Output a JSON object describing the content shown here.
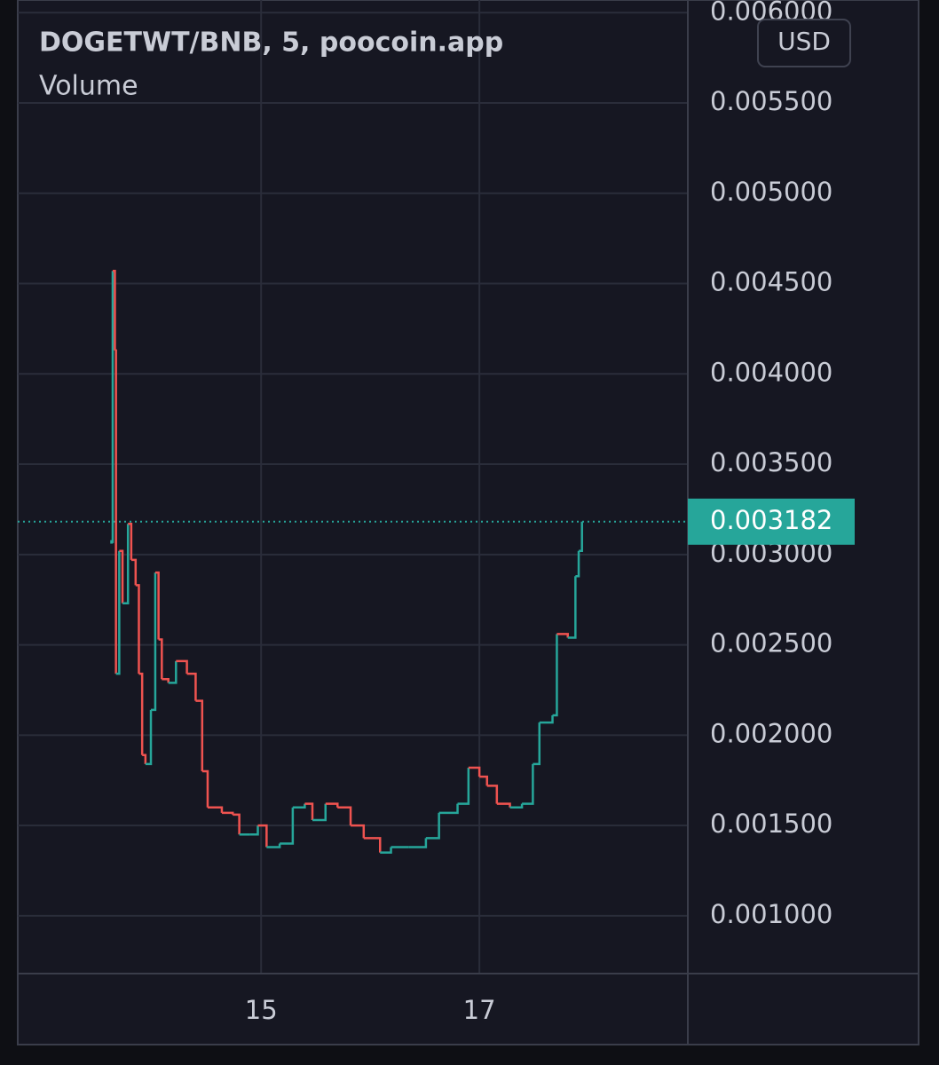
{
  "header": {
    "title": "DOGETWT/BNB, 5, poocoin.app",
    "subtitle": "Volume",
    "currency_button": "USD"
  },
  "chart_data": {
    "type": "line",
    "x": [
      13.63,
      13.64,
      13.66,
      13.67,
      13.7,
      13.73,
      13.78,
      13.81,
      13.85,
      13.88,
      13.91,
      13.94,
      13.99,
      14.03,
      14.06,
      14.09,
      14.15,
      14.22,
      14.32,
      14.4,
      14.46,
      14.51,
      14.64,
      14.74,
      14.8,
      14.9,
      14.97,
      15.05,
      15.17,
      15.29,
      15.4,
      15.47,
      15.59,
      15.7,
      15.82,
      15.94,
      16.09,
      16.19,
      16.35,
      16.51,
      16.63,
      16.8,
      16.9,
      17.0,
      17.07,
      17.16,
      17.28,
      17.39,
      17.49,
      17.55,
      17.67,
      17.71,
      17.81,
      17.88,
      17.91,
      17.94
    ],
    "series": [
      {
        "values": [
          0.00307,
          0.00457,
          0.00413,
          0.00234,
          0.00302,
          0.00273,
          0.00317,
          0.00297,
          0.00283,
          0.00234,
          0.00189,
          0.00184,
          0.00214,
          0.0029,
          0.00253,
          0.00231,
          0.00229,
          0.00241,
          0.00234,
          0.00219,
          0.0018,
          0.0016,
          0.00157,
          0.00156,
          0.00145,
          0.00145,
          0.0015,
          0.00138,
          0.0014,
          0.0016,
          0.00162,
          0.00153,
          0.00162,
          0.0016,
          0.0015,
          0.00143,
          0.00135,
          0.00138,
          0.00138,
          0.00143,
          0.00157,
          0.00162,
          0.00182,
          0.00177,
          0.00172,
          0.00162,
          0.0016,
          0.00162,
          0.00184,
          0.00207,
          0.00211,
          0.00256,
          0.00254,
          0.00288,
          0.00302,
          0.003182
        ]
      }
    ],
    "up_color": "#26a69a",
    "down_color": "#ef5350",
    "last_price": 0.003182,
    "xlim": [
      12.77,
      18.91
    ],
    "xticks": [
      15,
      17
    ],
    "ylim": [
      0.00068,
      0.00607
    ],
    "yticks": [
      {
        "value": 0.001,
        "label": "0.001000"
      },
      {
        "value": 0.0015,
        "label": "0.001500"
      },
      {
        "value": 0.002,
        "label": "0.002000"
      },
      {
        "value": 0.0025,
        "label": "0.002500"
      },
      {
        "value": 0.003,
        "label": "0.003000"
      },
      {
        "value": 0.0035,
        "label": "0.003500"
      },
      {
        "value": 0.004,
        "label": "0.004000"
      },
      {
        "value": 0.0045,
        "label": "0.004500"
      },
      {
        "value": 0.005,
        "label": "0.005000"
      },
      {
        "value": 0.0055,
        "label": "0.005500"
      },
      {
        "value": 0.006,
        "label": "0.006000"
      }
    ],
    "grid": true
  }
}
